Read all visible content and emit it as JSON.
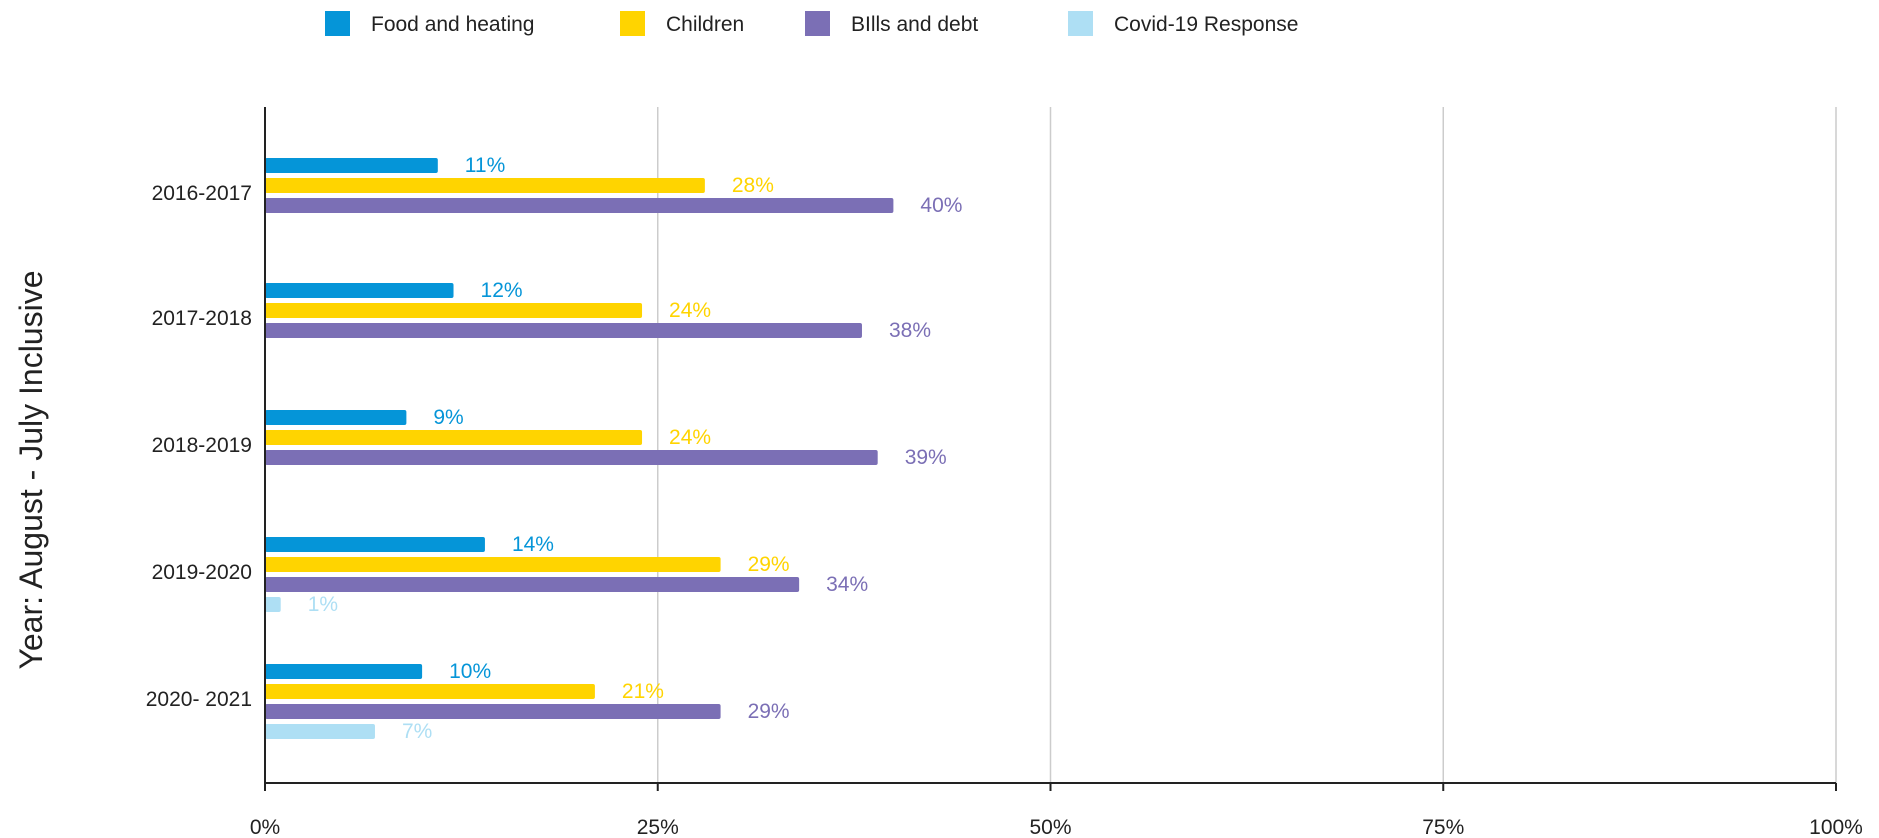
{
  "chart_data": {
    "type": "bar",
    "orientation": "horizontal",
    "ylabel": "Year: August - July Inclusive",
    "xlabel": "",
    "categories": [
      "2016-2017",
      "2017-2018",
      "2018-2019",
      "2019-2020",
      "2020- 2021"
    ],
    "series": [
      {
        "name": "Food and heating",
        "color": "#0595d8",
        "values": [
          11,
          12,
          9,
          14,
          10
        ],
        "labels": [
          "11%",
          "12%",
          "9%",
          "14%",
          "10%"
        ]
      },
      {
        "name": "Children",
        "color": "#ffd400",
        "values": [
          28,
          24,
          24,
          29,
          21
        ],
        "labels": [
          "28%",
          "24%",
          "24%",
          "29%",
          "21%"
        ]
      },
      {
        "name": "BIlls and debt",
        "color": "#7b6fb5",
        "values": [
          40,
          38,
          39,
          34,
          29
        ],
        "labels": [
          "40%",
          "38%",
          "39%",
          "34%",
          "29%"
        ]
      },
      {
        "name": "Covid-19 Response",
        "color": "#aedff4",
        "values": [
          null,
          null,
          null,
          1,
          7
        ],
        "labels": [
          null,
          null,
          null,
          "1%",
          "7%"
        ]
      }
    ],
    "xlim": [
      0,
      100
    ],
    "xticks": [
      0,
      25,
      50,
      75,
      100
    ],
    "xtick_labels": [
      "0%",
      "25%",
      "50%",
      "75%",
      "100%"
    ],
    "grid": "vertical",
    "legend_position": "top"
  }
}
